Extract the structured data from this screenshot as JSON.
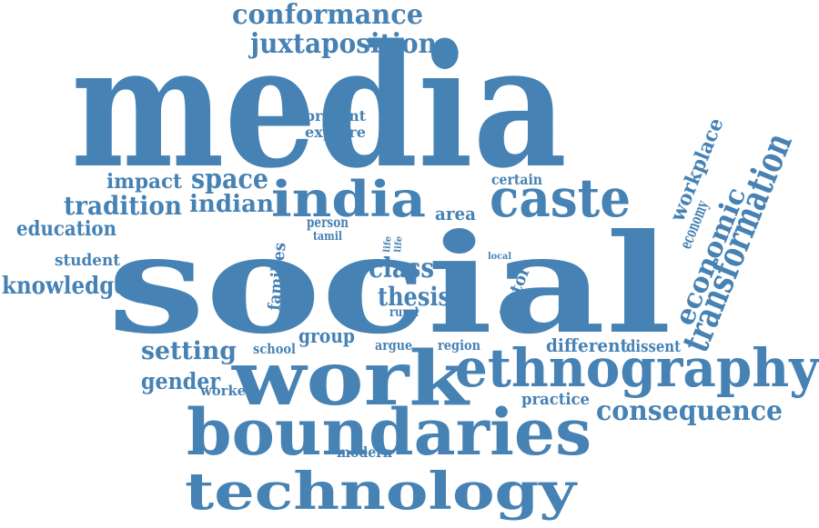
{
  "style": {
    "word_color": "#4682b4",
    "background": "#ffffff"
  },
  "words": [
    {
      "text": "media"
    },
    {
      "text": "social"
    },
    {
      "text": "work"
    },
    {
      "text": "ethnography"
    },
    {
      "text": "boundaries"
    },
    {
      "text": "technology"
    },
    {
      "text": "india"
    },
    {
      "text": "caste"
    },
    {
      "text": "conformance"
    },
    {
      "text": "juxtaposition"
    },
    {
      "text": "transformation"
    },
    {
      "text": "economic"
    },
    {
      "text": "economy"
    },
    {
      "text": "workplace"
    },
    {
      "text": "consequence"
    },
    {
      "text": "class"
    },
    {
      "text": "thesis"
    },
    {
      "text": "tradition"
    },
    {
      "text": "indian"
    },
    {
      "text": "space"
    },
    {
      "text": "impact"
    },
    {
      "text": "education"
    },
    {
      "text": "knowledge"
    },
    {
      "text": "student"
    },
    {
      "text": "setting"
    },
    {
      "text": "gender"
    },
    {
      "text": "worker"
    },
    {
      "text": "school"
    },
    {
      "text": "group"
    },
    {
      "text": "argue"
    },
    {
      "text": "region"
    },
    {
      "text": "different"
    },
    {
      "text": "dissent"
    },
    {
      "text": "practice"
    },
    {
      "text": "modern"
    },
    {
      "text": "present"
    },
    {
      "text": "explore"
    },
    {
      "text": "certain"
    },
    {
      "text": "area"
    },
    {
      "text": "person"
    },
    {
      "text": "tamil"
    },
    {
      "text": "families"
    },
    {
      "text": "life"
    },
    {
      "text": "life"
    },
    {
      "text": "rural"
    },
    {
      "text": "factor"
    },
    {
      "text": "local"
    }
  ]
}
